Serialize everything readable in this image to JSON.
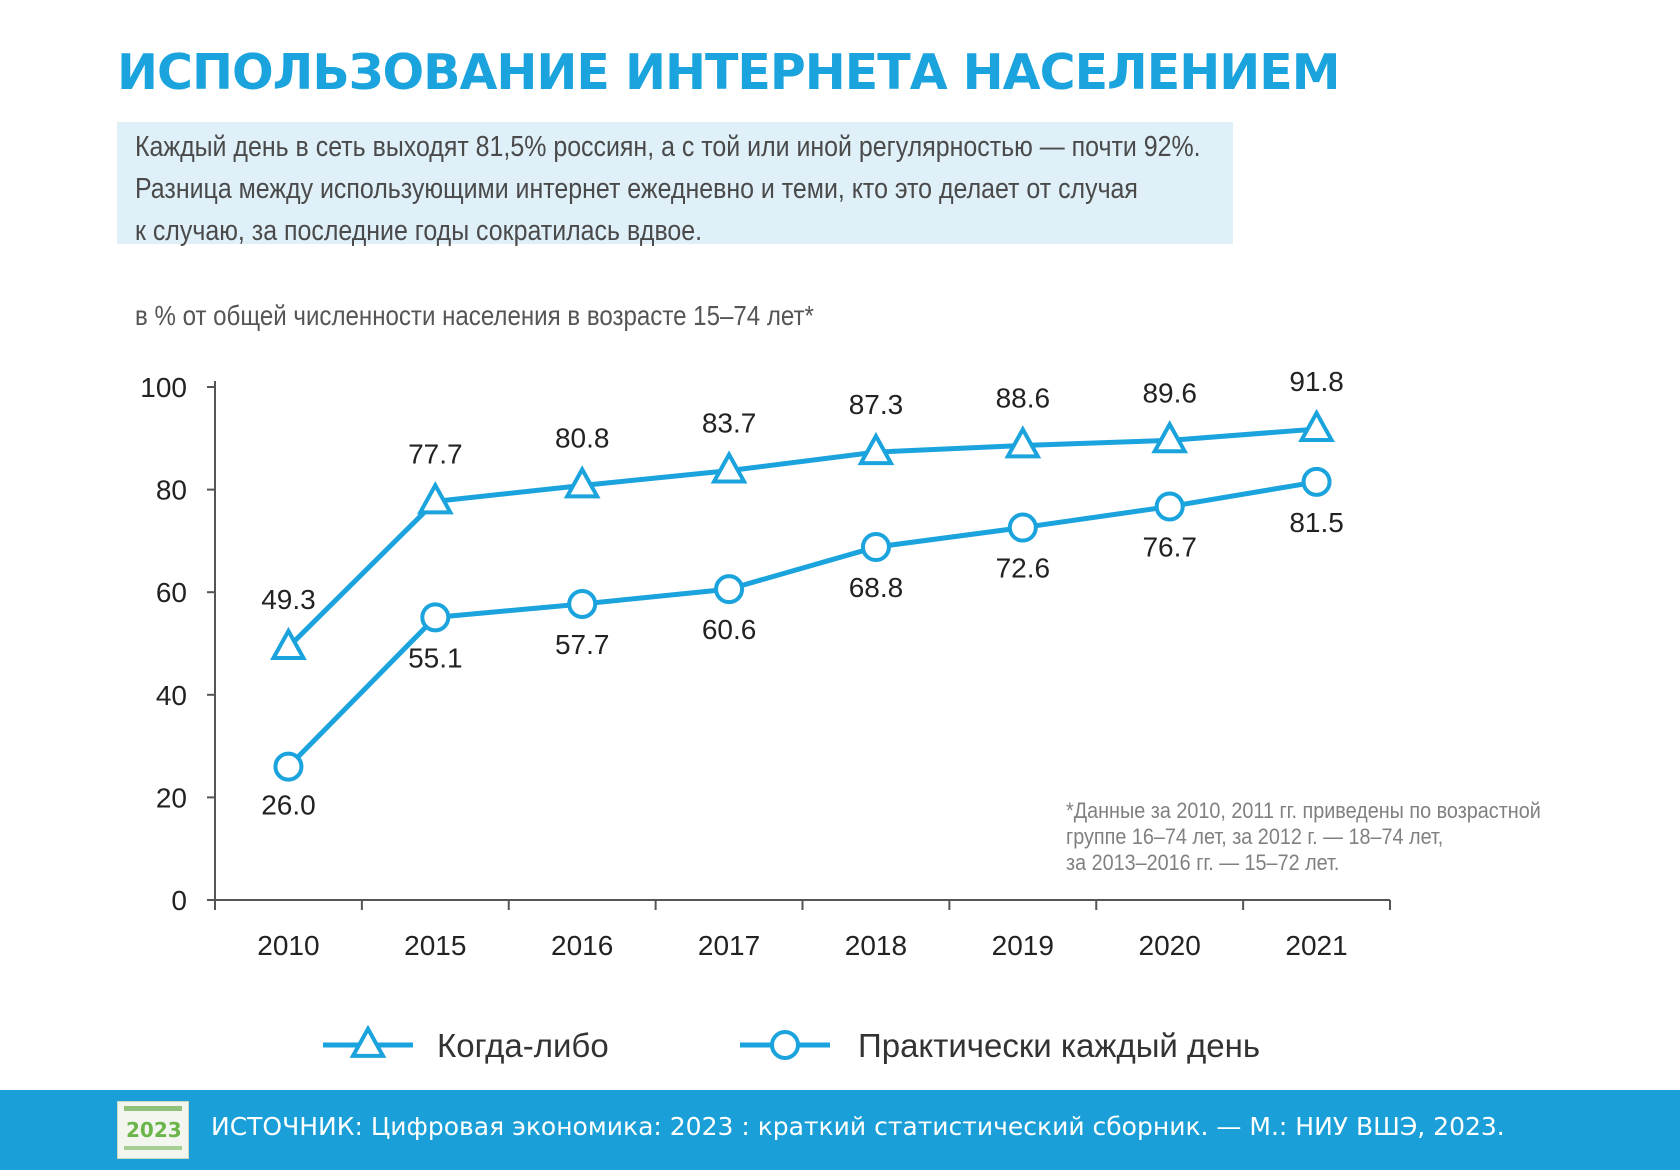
{
  "header": {
    "title": "ИСПОЛЬЗОВАНИЕ ИНТЕРНЕТА НАСЕЛЕНИЕМ",
    "lead": [
      "Каждый день в сеть выходят 81,5% россиян, а с той или иной регулярностью — почти 92%.",
      "Разница между использующими интернет ежедневно и теми, кто это делает от случая",
      "к случаю, за последние годы сократилась вдвое."
    ]
  },
  "chart_data": {
    "type": "line",
    "title": "",
    "subtitle": "в % от общей численности населения в возрасте 15–74 лет*",
    "categories": [
      "2010",
      "2015",
      "2016",
      "2017",
      "2018",
      "2019",
      "2020",
      "2021"
    ],
    "ylim": [
      0,
      100
    ],
    "yticks": [
      0,
      20,
      40,
      60,
      80,
      100
    ],
    "grid": false,
    "legend_position": "bottom",
    "series": [
      {
        "name": "Когда-либо",
        "marker": "triangle",
        "values": [
          49.3,
          77.7,
          80.8,
          83.7,
          87.3,
          88.6,
          89.6,
          91.8
        ]
      },
      {
        "name": "Практически каждый день",
        "marker": "circle",
        "values": [
          26.0,
          55.1,
          57.7,
          60.6,
          68.8,
          72.6,
          76.7,
          81.5
        ]
      }
    ],
    "color": "#1aa3dc",
    "footnote": [
      "*Данные за 2010, 2011 гг. приведены по возрастной",
      "группе 16–74 лет, за 2012 г. — 18–74 лет,",
      "за 2013–2016 гг. — 15–72 лет."
    ]
  },
  "footer": {
    "source": "ИСТОЧНИК: Цифровая экономика: 2023 : краткий статистический сборник. — М.: НИУ ВШЭ, 2023.",
    "thumbnail_text": "2023"
  }
}
